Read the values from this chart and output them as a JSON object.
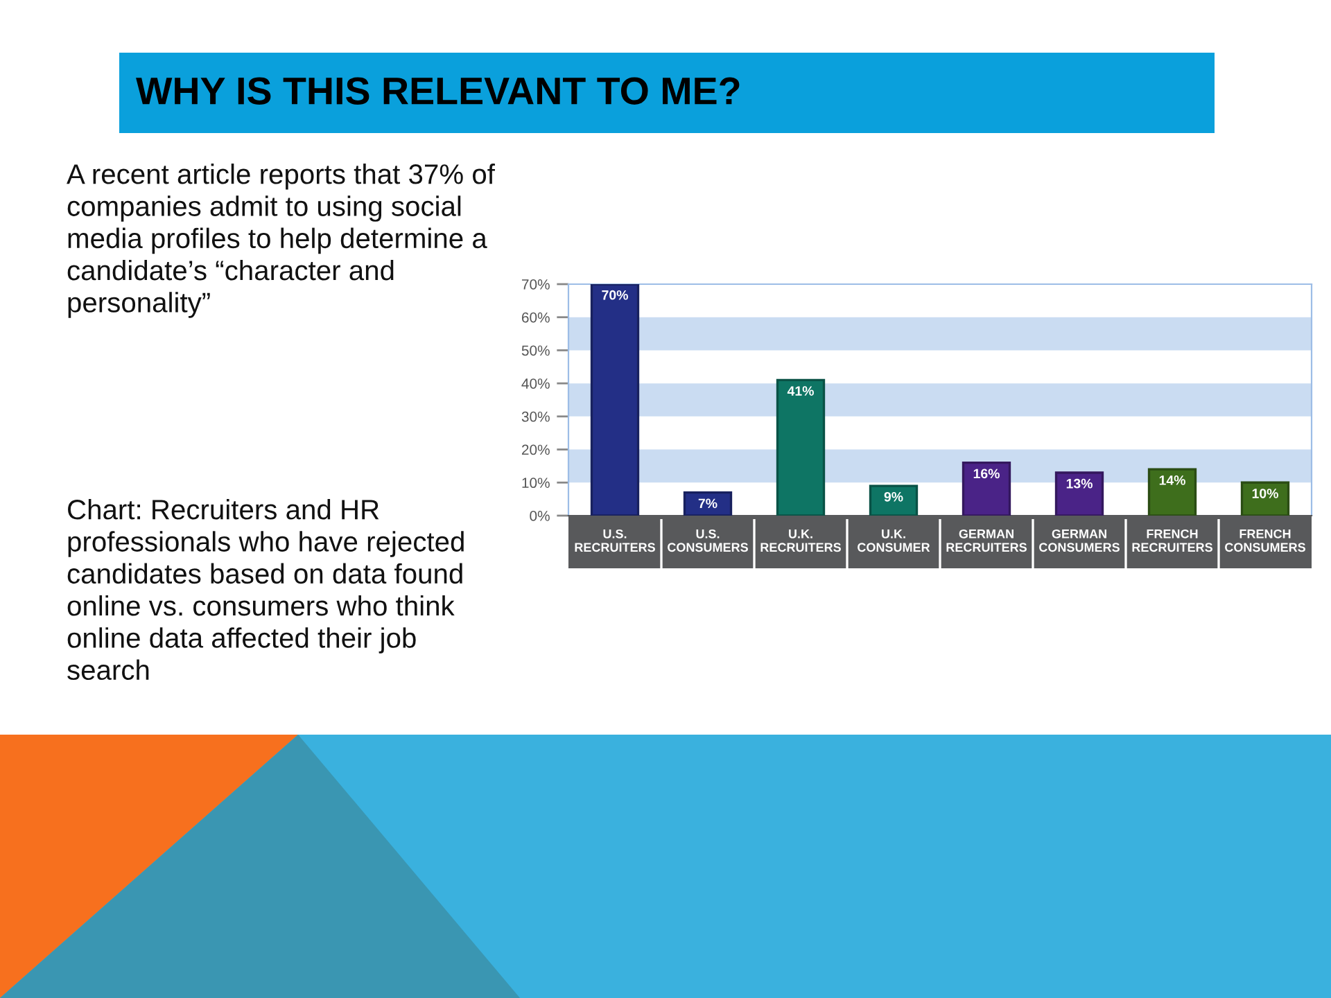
{
  "chart_data": {
    "type": "bar",
    "title": "WHY IS THIS RELEVANT TO ME?",
    "annotations": [
      "A recent article reports that 37% of companies admit to using social media profiles to help determine a candidate’s “character and personality”",
      "Chart: Recruiters and HR professionals who have rejected candidates based on data found online vs. consumers who think online data affected their job search"
    ],
    "categories": [
      "U.S. RECRUITERS",
      "U.S. CONSUMERS",
      "U.K. RECRUITERS",
      "U.K. CONSUMER",
      "GERMAN RECRUITERS",
      "GERMAN CONSUMERS",
      "FRENCH RECRUITERS",
      "FRENCH CONSUMERS"
    ],
    "values": [
      70,
      7,
      41,
      9,
      16,
      13,
      14,
      10
    ],
    "colors": [
      "#232f86",
      "#232f86",
      "#0e7564",
      "#0e7564",
      "#4a2387",
      "#4a2387",
      "#3e6e1c",
      "#3e6e1c"
    ],
    "value_labels": [
      "70%",
      "7%",
      "41%",
      "9%",
      "16%",
      "13%",
      "14%",
      "10%"
    ],
    "ylim": [
      0,
      70
    ],
    "yticks": [
      {
        "value": 0,
        "label": "0%"
      },
      {
        "value": 10,
        "label": "10%"
      },
      {
        "value": 20,
        "label": "20%"
      },
      {
        "value": 30,
        "label": "30%"
      },
      {
        "value": 40,
        "label": "40%"
      },
      {
        "value": 50,
        "label": "50%"
      },
      {
        "value": 60,
        "label": "60%"
      },
      {
        "value": 70,
        "label": "70%"
      }
    ],
    "bands": [
      {
        "axis": "y",
        "from": 10,
        "to": 20,
        "color": "#cadcf2"
      },
      {
        "axis": "y",
        "from": 30,
        "to": 40,
        "color": "#cadcf2"
      },
      {
        "axis": "y",
        "from": 50,
        "to": 60,
        "color": "#cadcf2"
      }
    ]
  }
}
